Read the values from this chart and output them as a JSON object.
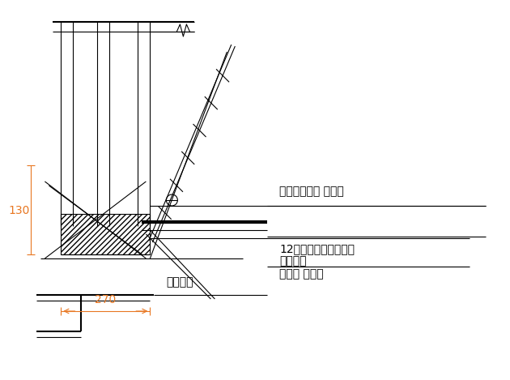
{
  "bg_color": "#ffffff",
  "line_color": "#000000",
  "dim_color": "#e87722",
  "text_color": "#000000",
  "label_130": "130",
  "label_270": "270",
  "label_waijian": "外连杆（周转 使用）",
  "label_12hao": "12号槽锤（周转使用）",
  "label_lianjie": "连接螺母",
  "label_lianjie2": "（周转 使用）",
  "label_dijiao": "地脚螺栋",
  "font_size_labels": 10,
  "font_size_dims": 9
}
